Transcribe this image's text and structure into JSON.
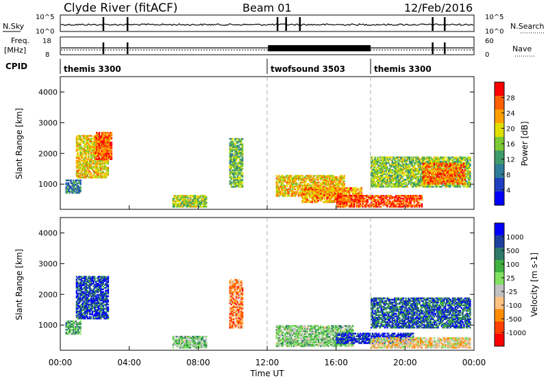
{
  "header": {
    "title": "Clyde River (fitACF)",
    "beam": "Beam 01",
    "date": "12/Feb/2016"
  },
  "status_panel": {
    "nsky_label": "N.Sky",
    "nsky_ticks": [
      "10^5",
      "10^0"
    ],
    "nsearch_label": "N.Search",
    "nsearch_ticks": [
      "10^5",
      "10^0"
    ],
    "freq_label": "Freq.",
    "freq_unit": "[MHz]",
    "freq_ticks": [
      "18",
      "8"
    ],
    "nave_label": "Nave",
    "nave_ticks": [
      "60",
      "0"
    ],
    "cpid_label": "CPID",
    "cpid_segments": [
      {
        "name": "themis 3300",
        "start_hour": 0
      },
      {
        "name": "twofsound 3503",
        "start_hour": 12
      },
      {
        "name": "themis 3300",
        "start_hour": 18
      }
    ]
  },
  "chart_data": [
    {
      "type": "heatmap",
      "title": "Power",
      "xlabel": "",
      "ylabel": "Slant Range [km]",
      "xlim": [
        0,
        24
      ],
      "ylim": [
        180,
        4500
      ],
      "x_ticks": [
        "00:00",
        "04:00",
        "08:00",
        "12:00",
        "16:00",
        "20:00",
        "00:00"
      ],
      "y_ticks": [
        "1000",
        "2000",
        "3000",
        "4000"
      ],
      "colorbar": {
        "label": "Power [dB]",
        "ticks": [
          "28",
          "24",
          "20",
          "16",
          "12",
          "8",
          "4"
        ],
        "range": [
          0,
          30
        ],
        "colors": [
          "#0000ff",
          "#1f3fc0",
          "#2e7d9a",
          "#3f9b6b",
          "#7cc832",
          "#e0e000",
          "#ffa000",
          "#ff6000",
          "#ff0000"
        ]
      },
      "regions": [
        {
          "t": [
            0.3,
            1.2
          ],
          "r": [
            700,
            1150
          ],
          "v": 9
        },
        {
          "t": [
            0.9,
            2.8
          ],
          "r": [
            1200,
            2600
          ],
          "v": 19
        },
        {
          "t": [
            2.0,
            3.0
          ],
          "r": [
            1800,
            2700
          ],
          "v": 25
        },
        {
          "t": [
            6.5,
            8.5
          ],
          "r": [
            250,
            650
          ],
          "v": 16
        },
        {
          "t": [
            9.8,
            10.6
          ],
          "r": [
            900,
            2500
          ],
          "v": 14
        },
        {
          "t": [
            12.5,
            16.5
          ],
          "r": [
            600,
            1300
          ],
          "v": 20
        },
        {
          "t": [
            14.0,
            17.5
          ],
          "r": [
            400,
            900
          ],
          "v": 22
        },
        {
          "t": [
            16.0,
            21.0
          ],
          "r": [
            250,
            650
          ],
          "v": 26
        },
        {
          "t": [
            18.0,
            23.8
          ],
          "r": [
            900,
            1900
          ],
          "v": 15
        },
        {
          "t": [
            21.0,
            23.5
          ],
          "r": [
            1000,
            1700
          ],
          "v": 24
        }
      ]
    },
    {
      "type": "heatmap",
      "title": "Velocity",
      "xlabel": "Time UT",
      "ylabel": "Slant Range [km]",
      "xlim": [
        0,
        24
      ],
      "ylim": [
        180,
        4500
      ],
      "x_ticks": [
        "00:00",
        "04:00",
        "08:00",
        "12:00",
        "16:00",
        "20:00",
        "00:00"
      ],
      "y_ticks": [
        "1000",
        "2000",
        "3000",
        "4000"
      ],
      "colorbar": {
        "label": "Velocity [m s-1]",
        "ticks": [
          "1000",
          "500",
          "100",
          "25",
          "-25",
          "-100",
          "-500",
          "-1000"
        ],
        "range": [
          -1000,
          1000
        ],
        "colors": [
          "#ff0000",
          "#ff4000",
          "#ff8c00",
          "#ffc080",
          "#c0c0c0",
          "#80e060",
          "#40b040",
          "#2f7a6a",
          "#1e3fa0",
          "#0000ff"
        ]
      },
      "regions": [
        {
          "t": [
            0.3,
            1.2
          ],
          "r": [
            700,
            1150
          ],
          "v": 300
        },
        {
          "t": [
            0.9,
            2.8
          ],
          "r": [
            1200,
            2600
          ],
          "v": 700
        },
        {
          "t": [
            6.5,
            8.5
          ],
          "r": [
            250,
            650
          ],
          "v": 150
        },
        {
          "t": [
            9.8,
            10.6
          ],
          "r": [
            900,
            2500
          ],
          "v": -500
        },
        {
          "t": [
            12.5,
            17.0
          ],
          "r": [
            300,
            1000
          ],
          "v": 120
        },
        {
          "t": [
            16.0,
            20.5
          ],
          "r": [
            400,
            750
          ],
          "v": 800
        },
        {
          "t": [
            18.0,
            23.8
          ],
          "r": [
            900,
            1900
          ],
          "v": 600
        },
        {
          "t": [
            18.0,
            23.8
          ],
          "r": [
            250,
            600
          ],
          "v": -200
        }
      ]
    }
  ]
}
